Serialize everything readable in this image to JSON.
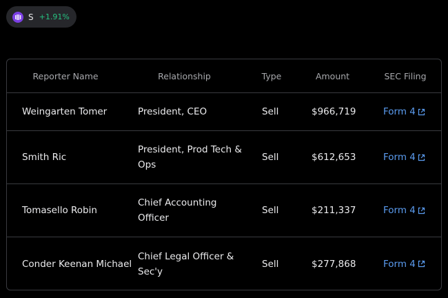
{
  "ticker": {
    "symbol": "S",
    "change": "+1.91%",
    "logo_icon": "sentinelone-logo-icon",
    "logo_color": "#7b3fe4",
    "change_color": "#26c281"
  },
  "table": {
    "headers": [
      "Reporter Name",
      "Relationship",
      "Type",
      "Amount",
      "SEC Filing"
    ],
    "rows": [
      {
        "name": "Weingarten Tomer",
        "relationship": "President, CEO",
        "type": "Sell",
        "amount": "$966,719",
        "filing": "Form 4"
      },
      {
        "name": "Smith Ric",
        "relationship": "President, Prod Tech & Ops",
        "type": "Sell",
        "amount": "$612,653",
        "filing": "Form 4"
      },
      {
        "name": "Tomasello Robin",
        "relationship": "Chief Accounting Officer",
        "type": "Sell",
        "amount": "$211,337",
        "filing": "Form 4"
      },
      {
        "name": "Conder Keenan Michael",
        "relationship": "Chief Legal Officer & Sec'y",
        "type": "Sell",
        "amount": "$277,868",
        "filing": "Form 4"
      }
    ],
    "link_color": "#5b9cf0",
    "link_icon": "external-link-icon"
  }
}
